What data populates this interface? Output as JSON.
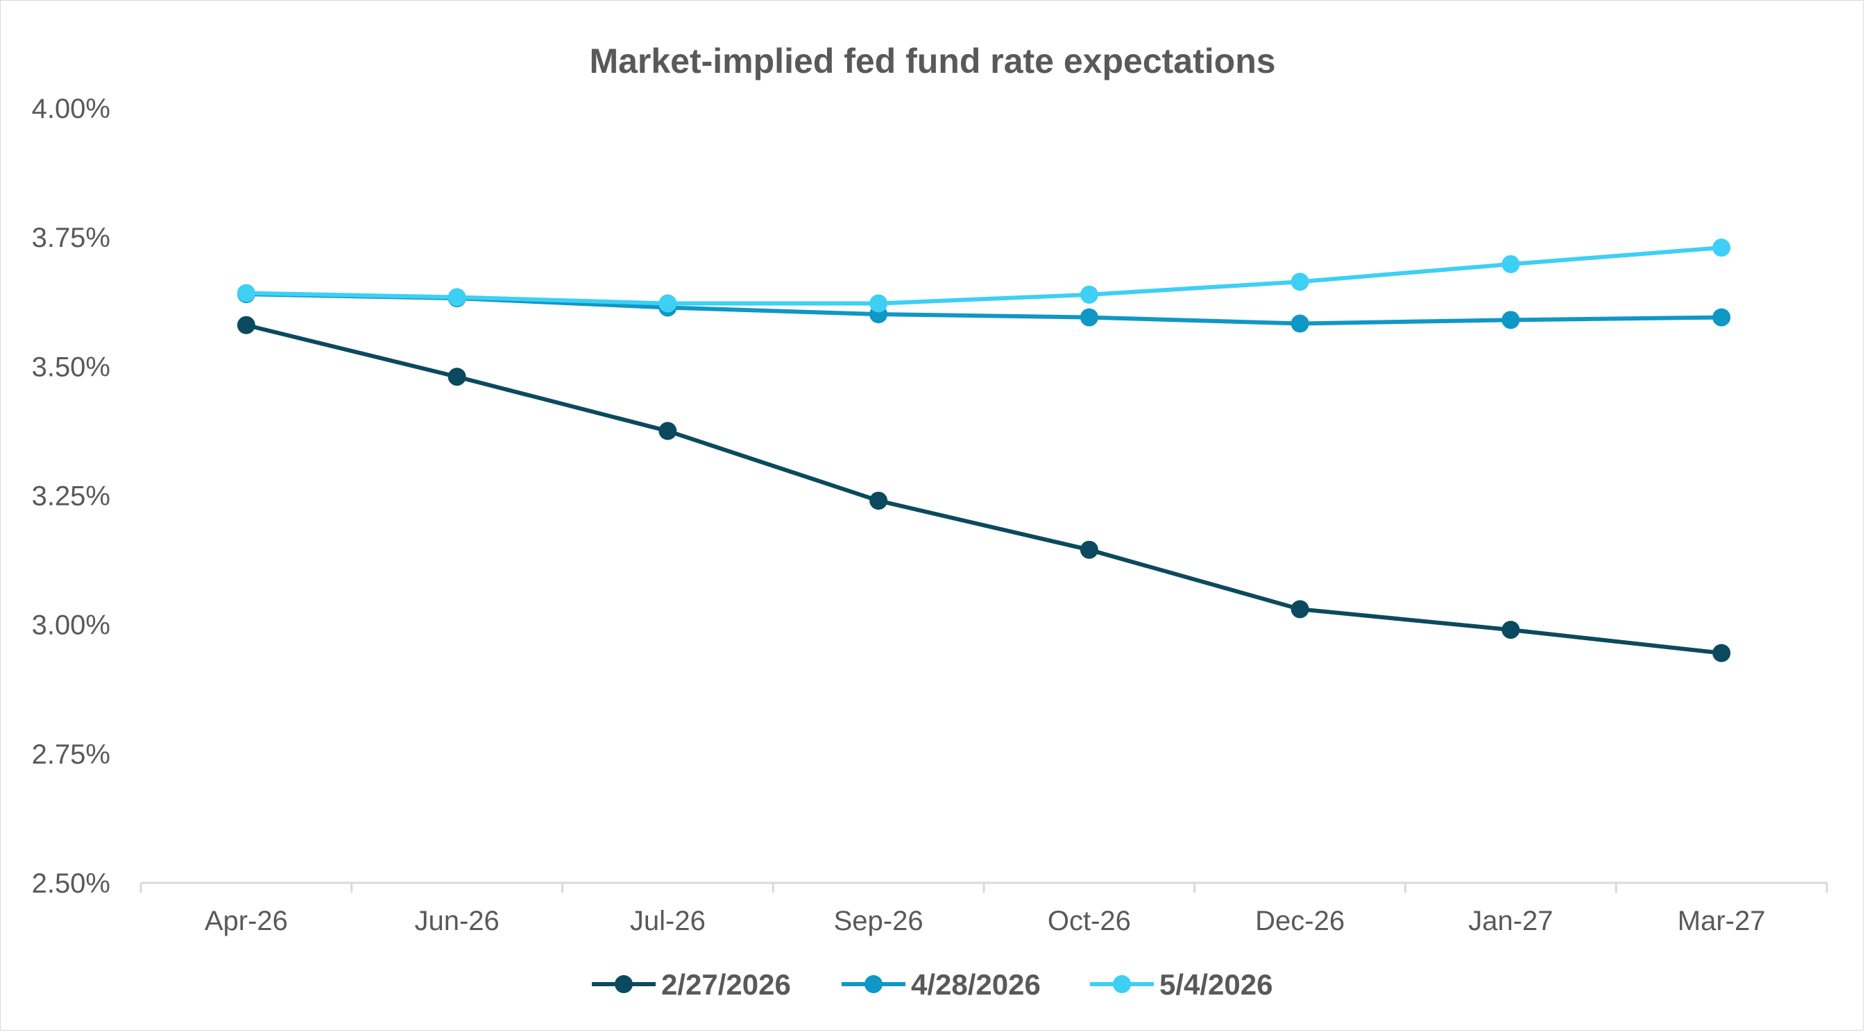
{
  "colors": {
    "background": "#ffffff",
    "axis": "#d9d9d9",
    "text": "#595959"
  },
  "chart_data": {
    "type": "line",
    "title": "Market-implied fed fund rate expectations",
    "xlabel": "",
    "ylabel": "",
    "categories": [
      "Apr-26",
      "Jun-26",
      "Jul-26",
      "Sep-26",
      "Oct-26",
      "Dec-26",
      "Jan-27",
      "Mar-27"
    ],
    "ylim": [
      2.5,
      4.0
    ],
    "yticks": [
      2.5,
      2.75,
      3.0,
      3.25,
      3.5,
      3.75,
      4.0
    ],
    "ytick_labels": [
      "2.50%",
      "2.75%",
      "3.00%",
      "3.25%",
      "3.50%",
      "3.75%",
      "4.00%"
    ],
    "grid": false,
    "legend_position": "bottom",
    "series": [
      {
        "name": "2/27/2026",
        "color": "#0b4a5e",
        "values": [
          3.58,
          3.48,
          3.375,
          3.24,
          3.145,
          3.03,
          2.99,
          2.945
        ]
      },
      {
        "name": "4/28/2026",
        "color": "#0f97c6",
        "values": [
          3.64,
          3.632,
          3.614,
          3.601,
          3.595,
          3.583,
          3.59,
          3.595
        ]
      },
      {
        "name": "5/4/2026",
        "color": "#3ecff5",
        "values": [
          3.642,
          3.634,
          3.622,
          3.622,
          3.639,
          3.664,
          3.698,
          3.73
        ]
      }
    ]
  }
}
